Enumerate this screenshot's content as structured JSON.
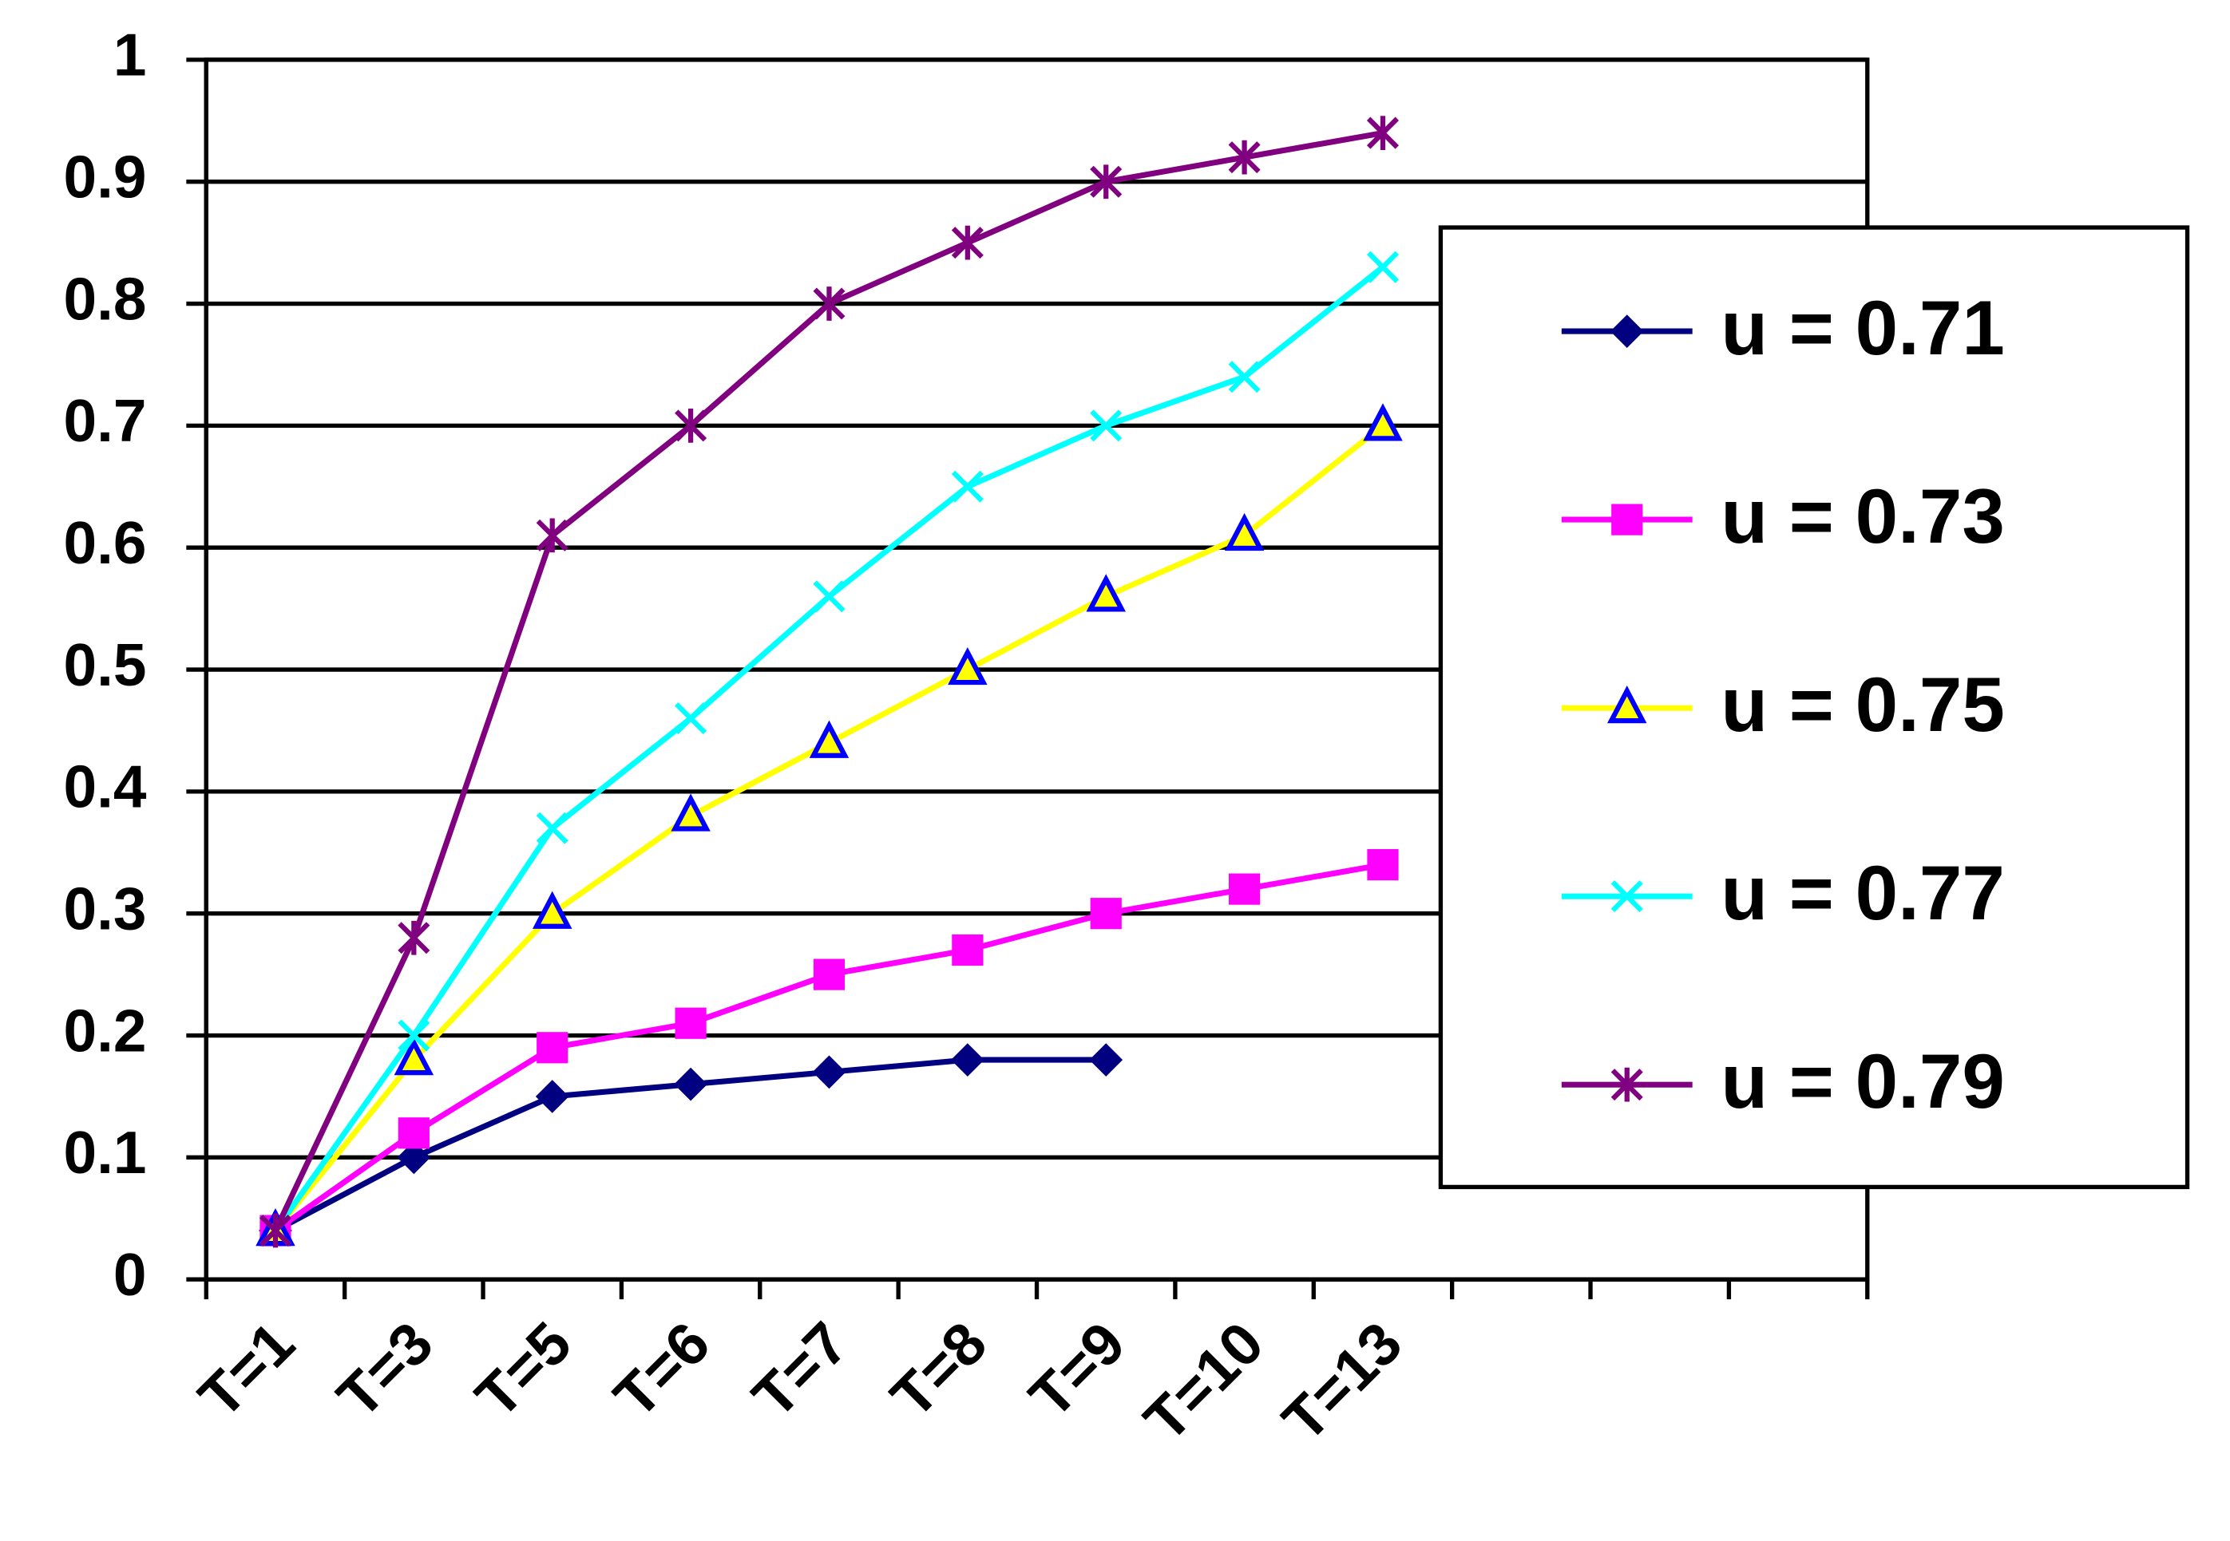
{
  "chart_data": {
    "type": "line",
    "categories": [
      "T=1",
      "T=3",
      "T=5",
      "T=6",
      "T=7",
      "T=8",
      "T=9",
      "T=10",
      "T=13",
      null,
      null,
      null
    ],
    "series": [
      {
        "name": "u = 0.71",
        "color": "#000080",
        "marker": "diamond",
        "values": [
          0.04,
          0.1,
          0.15,
          0.16,
          0.17,
          0.18,
          0.18,
          null,
          null,
          null,
          null,
          null
        ]
      },
      {
        "name": "u = 0.73",
        "color": "#ff00ff",
        "marker": "square",
        "values": [
          0.04,
          0.12,
          0.19,
          0.21,
          0.25,
          0.27,
          0.3,
          0.32,
          0.34,
          null,
          null,
          null
        ]
      },
      {
        "name": "u = 0.75",
        "color": "#ffff00",
        "marker": "triangle",
        "marker_color": "#0000ff",
        "values": [
          0.04,
          0.18,
          0.3,
          0.38,
          0.44,
          0.5,
          0.56,
          0.61,
          0.7,
          null,
          null,
          null
        ]
      },
      {
        "name": "u = 0.77",
        "color": "#00ffff",
        "marker": "x",
        "values": [
          0.04,
          0.2,
          0.37,
          0.46,
          0.56,
          0.65,
          0.7,
          0.74,
          0.83,
          null,
          null,
          null
        ]
      },
      {
        "name": "u = 0.79",
        "color": "#800080",
        "marker": "star",
        "values": [
          0.04,
          0.28,
          0.61,
          0.7,
          0.8,
          0.85,
          0.9,
          0.92,
          0.94,
          null,
          null,
          null
        ]
      }
    ],
    "ylim": [
      0,
      1
    ],
    "yticks": [
      0,
      0.1,
      0.2,
      0.3,
      0.4,
      0.5,
      0.6,
      0.7,
      0.8,
      0.9,
      1
    ],
    "grid": true,
    "legend": "right"
  }
}
